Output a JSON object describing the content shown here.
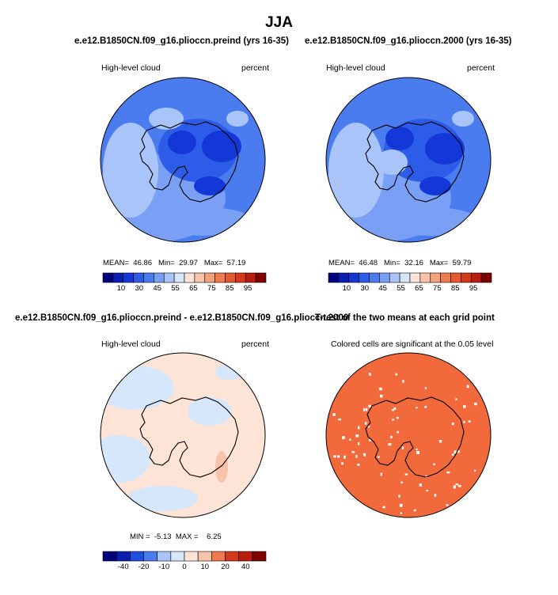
{
  "figure": {
    "title": "JJA"
  },
  "colors": {
    "cold_scale": [
      "#00007f",
      "#0a1fb0",
      "#1438d8",
      "#2d5ce8",
      "#4a7cf0",
      "#7aa0f5",
      "#a8c4f8",
      "#d6e6fb",
      "#fde4d6",
      "#f8c3a8",
      "#f4a07a",
      "#f07c4e",
      "#e8592e",
      "#d6391a",
      "#b81d10",
      "#7f0000"
    ],
    "diff_scale": [
      "#00007f",
      "#0a1fb0",
      "#1e4fe0",
      "#4a7cf0",
      "#a8c4f8",
      "#d6e6fb",
      "#fde4d6",
      "#f8c3a8",
      "#f07c4e",
      "#d6391a",
      "#b81d10",
      "#7f0000"
    ],
    "significant": "#f26a3b"
  },
  "chart_data": [
    {
      "type": "heatmap",
      "title": "e.e12.B1850CN.f09_g16.plioccn.preind (yrs 16-35)",
      "left_label": "High-level cloud",
      "right_label": "percent",
      "projection": "south polar stereographic",
      "stats": {
        "mean_label": "MEAN=",
        "mean": "46.86",
        "min_label": "Min=",
        "min": "29.97",
        "max_label": "Max=",
        "max": "57.19"
      },
      "colorbar_ticks": [
        "10",
        "30",
        "45",
        "55",
        "65",
        "75",
        "85",
        "95"
      ]
    },
    {
      "type": "heatmap",
      "title": "e.e12.B1850CN.f09_g16.plioccn.2000 (yrs 16-35)",
      "left_label": "High-level cloud",
      "right_label": "percent",
      "projection": "south polar stereographic",
      "stats": {
        "mean_label": "MEAN=",
        "mean": "46.48",
        "min_label": "Min=",
        "min": "32.16",
        "max_label": "Max=",
        "max": "59.79"
      },
      "colorbar_ticks": [
        "10",
        "30",
        "45",
        "55",
        "65",
        "75",
        "85",
        "95"
      ]
    },
    {
      "type": "heatmap",
      "title": "e.e12.B1850CN.f09_g16.plioccn.preind - e.e12.B1850CN.f09_g16.plioccn.2000",
      "left_label": "High-level cloud",
      "right_label": "percent",
      "projection": "south polar stereographic",
      "stats": {
        "min_label": "MIN =",
        "min": "-5.13",
        "max_label": "MAX =",
        "max": "6.25"
      },
      "colorbar_ticks": [
        "-40",
        "-20",
        "-10",
        "0",
        "10",
        "20",
        "40"
      ]
    },
    {
      "type": "heatmap",
      "title": "T-test of the two means at each grid point",
      "subtitle": "Colored cells are significant at the 0.05 level",
      "projection": "south polar stereographic"
    }
  ]
}
